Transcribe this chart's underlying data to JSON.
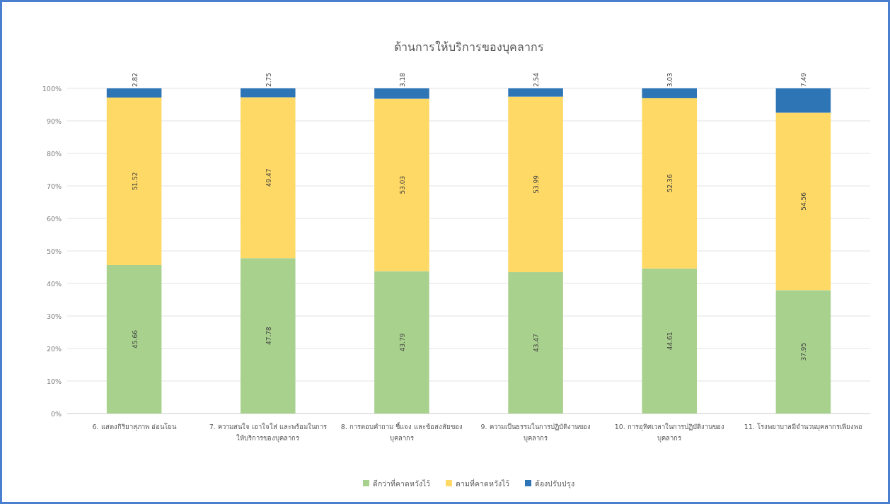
{
  "chart_data": {
    "type": "bar",
    "title": "ด้านการให้บริการของบุคลากร",
    "categories": [
      "6. แสดงกิริยาสุภาพ อ่อนโยน",
      "7. ความสนใจ เอาใจใส่ และพร้อมในการ ให้บริการของบุคลากร",
      "8. การตอบคำถาม ชี้แจง และข้อสงสัยของ บุคลากร",
      "9. ความเป็นธรรมในการปฏิบัติงานของ บุคลากร",
      "10. การอุทิศเวลาในการปฏิบัติงานของ บุคลากร",
      "11. โรงพยาบาลมีจำนวนบุคลากรเพียงพอ"
    ],
    "series": [
      {
        "name": "ดีกว่าที่คาดหวังไว้",
        "color": "#a9d18e",
        "values": [
          45.66,
          47.78,
          43.79,
          43.47,
          44.61,
          37.95
        ]
      },
      {
        "name": "ตามที่คาดหวังไว้",
        "color": "#ffd966",
        "values": [
          51.52,
          49.47,
          53.03,
          53.99,
          52.36,
          54.56
        ]
      },
      {
        "name": "ต้องปรับปรุง",
        "color": "#2e75b6",
        "values": [
          2.82,
          2.75,
          3.18,
          2.54,
          3.03,
          7.49
        ]
      }
    ],
    "stacked": true,
    "data_labels": true,
    "grid": "y",
    "legend": "bottom",
    "ylim": [
      0,
      100
    ],
    "yticks": [
      {
        "value": 0,
        "label": "0%"
      },
      {
        "value": 10,
        "label": "10%"
      },
      {
        "value": 20,
        "label": "20%"
      },
      {
        "value": 30,
        "label": "30%"
      },
      {
        "value": 40,
        "label": "40%"
      },
      {
        "value": 50,
        "label": "50%"
      },
      {
        "value": 60,
        "label": "60%"
      },
      {
        "value": 70,
        "label": "70%"
      },
      {
        "value": 80,
        "label": "80%"
      },
      {
        "value": 90,
        "label": "90%"
      },
      {
        "value": 100,
        "label": "100%"
      }
    ]
  }
}
